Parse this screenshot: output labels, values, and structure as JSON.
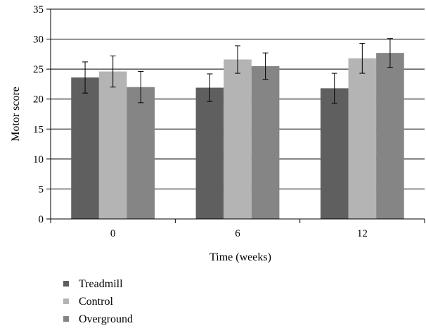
{
  "chart_data": {
    "type": "bar",
    "title": "",
    "xlabel": "Time (weeks)",
    "ylabel": "Motor score",
    "categories": [
      "0",
      "6",
      "12"
    ],
    "ylim": [
      0,
      35
    ],
    "yticks": [
      0,
      5,
      10,
      15,
      20,
      25,
      30,
      35
    ],
    "grid": "horizontal",
    "legend_position": "bottom-left",
    "series": [
      {
        "name": "Treadmill",
        "color": "#5f5f5f",
        "values": [
          23.6,
          21.9,
          21.8
        ],
        "errors": [
          2.6,
          2.3,
          2.5
        ]
      },
      {
        "name": "Control",
        "color": "#b4b4b4",
        "values": [
          24.6,
          26.6,
          26.8
        ],
        "errors": [
          2.6,
          2.3,
          2.5
        ]
      },
      {
        "name": "Overground",
        "color": "#858585",
        "values": [
          22.0,
          25.5,
          27.7
        ],
        "errors": [
          2.6,
          2.2,
          2.4
        ]
      }
    ]
  }
}
